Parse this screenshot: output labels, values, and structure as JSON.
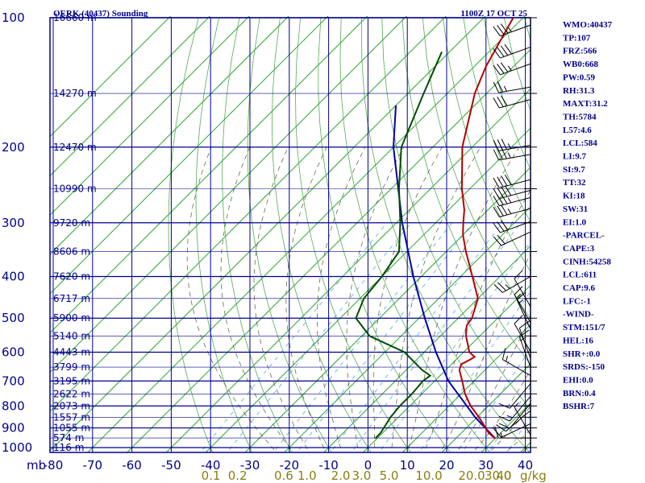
{
  "header": {
    "station": "OERK (40437) Sounding",
    "time": "1100Z 17 OCT 25"
  },
  "chart_data": {
    "type": "skew-t",
    "title": "OERK (40437) Sounding",
    "timestamp": "1100Z 17 OCT 25",
    "pressure_levels": [
      100,
      200,
      300,
      400,
      500,
      600,
      700,
      800,
      900,
      1000
    ],
    "pressure_labels": [
      "100",
      "200",
      "300",
      "400",
      "500",
      "600",
      "700",
      "800",
      "900",
      "1000"
    ],
    "pressure_axis_label": "mb",
    "temperature_ticks": [
      -80,
      -70,
      -60,
      -50,
      -40,
      -30,
      -20,
      -10,
      0,
      10,
      20,
      30,
      40
    ],
    "temperature_labels": [
      "-80",
      "-70",
      "-60",
      "-50",
      "-40",
      "-30",
      "-20",
      "-10",
      "0",
      "10",
      "20",
      "30",
      "40"
    ],
    "mixing_ratio_labels": [
      "0.1",
      "0.2",
      "0.6",
      "1.0",
      "2.0",
      "3.0",
      "5.0",
      "10.0",
      "20.0",
      "30.0",
      "40"
    ],
    "mixing_ratio_unit": "g/kg",
    "heights": [
      {
        "p": 100,
        "label": "16660 m"
      },
      {
        "p": 150,
        "label": "14270 m"
      },
      {
        "p": 200,
        "label": "12470 m"
      },
      {
        "p": 250,
        "label": "10990 m"
      },
      {
        "p": 300,
        "label": "9720 m"
      },
      {
        "p": 350,
        "label": "8606 m"
      },
      {
        "p": 400,
        "label": "7620 m"
      },
      {
        "p": 450,
        "label": "6717 m"
      },
      {
        "p": 500,
        "label": "5900 m"
      },
      {
        "p": 550,
        "label": "5140 m"
      },
      {
        "p": 600,
        "label": "4443 m"
      },
      {
        "p": 650,
        "label": "3799 m"
      },
      {
        "p": 700,
        "label": "3195 m"
      },
      {
        "p": 750,
        "label": "2622 m"
      },
      {
        "p": 800,
        "label": "2073 m"
      },
      {
        "p": 850,
        "label": "1557 m"
      },
      {
        "p": 900,
        "label": "1055 m"
      },
      {
        "p": 950,
        "label": "574 m"
      },
      {
        "p": 1000,
        "label": "116 m"
      }
    ],
    "temperature_profile": [
      {
        "p": 952,
        "t": 30.0
      },
      {
        "p": 925,
        "t": 27.0
      },
      {
        "p": 850,
        "t": 20.5
      },
      {
        "p": 800,
        "t": 15.5
      },
      {
        "p": 750,
        "t": 11.0
      },
      {
        "p": 700,
        "t": 7.0
      },
      {
        "p": 660,
        "t": 3.5
      },
      {
        "p": 640,
        "t": 2.5
      },
      {
        "p": 625,
        "t": 3.5
      },
      {
        "p": 615,
        "t": 4.0
      },
      {
        "p": 600,
        "t": 1.5
      },
      {
        "p": 550,
        "t": -3.5
      },
      {
        "p": 520,
        "t": -6.0
      },
      {
        "p": 500,
        "t": -6.5
      },
      {
        "p": 450,
        "t": -10.0
      },
      {
        "p": 400,
        "t": -17.0
      },
      {
        "p": 350,
        "t": -25.0
      },
      {
        "p": 320,
        "t": -30.0
      },
      {
        "p": 300,
        "t": -33.0
      },
      {
        "p": 280,
        "t": -36.0
      },
      {
        "p": 250,
        "t": -42.0
      },
      {
        "p": 200,
        "t": -52.5
      },
      {
        "p": 150,
        "t": -63.0
      },
      {
        "p": 130,
        "t": -67.0
      },
      {
        "p": 100,
        "t": -72.5
      }
    ],
    "dewpoint_profile": [
      {
        "p": 952,
        "t": -0.5
      },
      {
        "p": 925,
        "t": -0.5
      },
      {
        "p": 900,
        "t": -1.0
      },
      {
        "p": 850,
        "t": -2.0
      },
      {
        "p": 800,
        "t": -2.5
      },
      {
        "p": 750,
        "t": -2.5
      },
      {
        "p": 700,
        "t": -3.0
      },
      {
        "p": 680,
        "t": -2.5
      },
      {
        "p": 660,
        "t": -6.0
      },
      {
        "p": 600,
        "t": -15.0
      },
      {
        "p": 550,
        "t": -28.0
      },
      {
        "p": 500,
        "t": -36.0
      },
      {
        "p": 450,
        "t": -39.0
      },
      {
        "p": 400,
        "t": -40.0
      },
      {
        "p": 350,
        "t": -42.0
      },
      {
        "p": 300,
        "t": -49.0
      },
      {
        "p": 250,
        "t": -58.0
      },
      {
        "p": 200,
        "t": -68.0
      },
      {
        "p": 150,
        "t": -76.0
      },
      {
        "p": 120,
        "t": -82.0
      }
    ],
    "parcel_profile": [
      {
        "p": 952,
        "t": 30.0
      },
      {
        "p": 850,
        "t": 19.5
      },
      {
        "p": 700,
        "t": 3.5
      },
      {
        "p": 600,
        "t": -7.0
      },
      {
        "p": 500,
        "t": -18.5
      },
      {
        "p": 400,
        "t": -32.0
      },
      {
        "p": 300,
        "t": -48.5
      },
      {
        "p": 200,
        "t": -70.0
      },
      {
        "p": 160,
        "t": -80.0
      }
    ],
    "wind_barbs": [
      {
        "p": 104,
        "dir": 250,
        "speed": 35
      },
      {
        "p": 117,
        "dir": 250,
        "speed": 40
      },
      {
        "p": 128,
        "dir": 250,
        "speed": 35
      },
      {
        "p": 145,
        "dir": 260,
        "speed": 25
      },
      {
        "p": 155,
        "dir": 255,
        "speed": 30
      },
      {
        "p": 198,
        "dir": 260,
        "speed": 35
      },
      {
        "p": 208,
        "dir": 260,
        "speed": 35
      },
      {
        "p": 238,
        "dir": 255,
        "speed": 40
      },
      {
        "p": 252,
        "dir": 255,
        "speed": 40
      },
      {
        "p": 262,
        "dir": 255,
        "speed": 35
      },
      {
        "p": 278,
        "dir": 255,
        "speed": 35
      },
      {
        "p": 298,
        "dir": 250,
        "speed": 30
      },
      {
        "p": 315,
        "dir": 245,
        "speed": 20
      },
      {
        "p": 400,
        "dir": 240,
        "speed": 25
      },
      {
        "p": 470,
        "dir": 330,
        "speed": 10
      },
      {
        "p": 512,
        "dir": 330,
        "speed": 15
      },
      {
        "p": 530,
        "dir": 335,
        "speed": 15
      },
      {
        "p": 598,
        "dir": 330,
        "speed": 10
      },
      {
        "p": 620,
        "dir": 340,
        "speed": 10
      },
      {
        "p": 650,
        "dir": 340,
        "speed": 15
      },
      {
        "p": 680,
        "dir": 300,
        "speed": 15
      },
      {
        "p": 710,
        "dir": 220,
        "speed": 10
      },
      {
        "p": 760,
        "dir": 220,
        "speed": 15
      },
      {
        "p": 790,
        "dir": 220,
        "speed": 10
      },
      {
        "p": 820,
        "dir": 230,
        "speed": 10
      },
      {
        "p": 880,
        "dir": 245,
        "speed": 10
      },
      {
        "p": 935,
        "dir": 330,
        "speed": 5
      },
      {
        "p": 950,
        "dir": 270,
        "speed": 15
      }
    ]
  },
  "indices": [
    "WMO:40437",
    "TP:107",
    "FRZ:566",
    "WB0:668",
    "PW:0.59",
    "RH:31.3",
    "MAXT:31.2",
    "TH:5784",
    "L57:4.6",
    "LCL:584",
    "LI:9.7",
    "SI:9.7",
    "TT:32",
    "KI:18",
    "SW:31",
    "EI:1.0",
    "-PARCEL-",
    "CAPE:3",
    "CINH:54258",
    "LCL:611",
    "CAP:9.6",
    "LFC:-1",
    "-WIND-",
    "STM:151/7",
    "HEL:16",
    "SHR+:0.0",
    "SRDS:-150",
    "EHI:0.0",
    "BRN:0.4",
    "BSHR:7"
  ],
  "colors": {
    "grid": "#00008b",
    "isotherm": "#2aa52a",
    "dry_adiabat": "#55aa55",
    "mixing_ratio": "#4da6e6",
    "moist_adiabat": "#555533",
    "temperature": "#b30000",
    "dewpoint": "#004d00",
    "parcel": "#0000aa",
    "barb": "#000000",
    "mixing_label": "#8b7d10"
  }
}
